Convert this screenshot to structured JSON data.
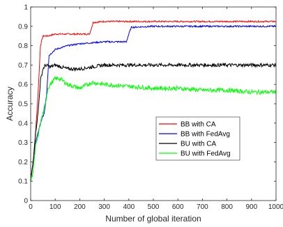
{
  "chart_data": {
    "type": "line",
    "title": "",
    "xlabel": "Number of global iteration",
    "ylabel": "Accuracy",
    "xlim": [
      0,
      1000
    ],
    "ylim": [
      0,
      1
    ],
    "xticks": [
      0,
      100,
      200,
      300,
      400,
      500,
      600,
      700,
      800,
      900,
      1000
    ],
    "yticks": [
      0,
      0.1,
      0.2,
      0.3,
      0.4,
      0.5,
      0.6,
      0.7,
      0.8,
      0.9,
      1
    ],
    "grid": false,
    "legend_position": "center-right",
    "series": [
      {
        "name": "BB with CA",
        "color": "#ff0000",
        "x": [
          0,
          10,
          20,
          30,
          40,
          50,
          70,
          100,
          150,
          200,
          240,
          245,
          255,
          300,
          400,
          500,
          600,
          700,
          800,
          900,
          1000
        ],
        "y": [
          0.1,
          0.2,
          0.35,
          0.55,
          0.8,
          0.85,
          0.85,
          0.86,
          0.86,
          0.86,
          0.86,
          0.88,
          0.92,
          0.925,
          0.925,
          0.925,
          0.925,
          0.925,
          0.925,
          0.925,
          0.925
        ]
      },
      {
        "name": "BB with FedAvg",
        "color": "#0000ff",
        "x": [
          0,
          10,
          20,
          30,
          45,
          55,
          65,
          75,
          100,
          150,
          200,
          300,
          390,
          400,
          410,
          500,
          600,
          700,
          800,
          900,
          1000
        ],
        "y": [
          0.1,
          0.2,
          0.3,
          0.35,
          0.42,
          0.45,
          0.55,
          0.75,
          0.78,
          0.8,
          0.81,
          0.82,
          0.82,
          0.86,
          0.895,
          0.9,
          0.9,
          0.9,
          0.9,
          0.9,
          0.9
        ]
      },
      {
        "name": "BU with CA",
        "color": "#000000",
        "x": [
          0,
          10,
          20,
          30,
          40,
          50,
          60,
          80,
          100,
          150,
          200,
          250,
          300,
          400,
          500,
          600,
          700,
          800,
          900,
          1000
        ],
        "y": [
          0.1,
          0.2,
          0.35,
          0.45,
          0.62,
          0.68,
          0.7,
          0.69,
          0.7,
          0.68,
          0.68,
          0.69,
          0.7,
          0.7,
          0.7,
          0.7,
          0.7,
          0.7,
          0.7,
          0.7
        ]
      },
      {
        "name": "BU with FedAvg",
        "color": "#00ff00",
        "x": [
          0,
          10,
          20,
          30,
          40,
          50,
          60,
          70,
          80,
          100,
          120,
          150,
          200,
          250,
          300,
          400,
          500,
          600,
          700,
          800,
          900,
          1000
        ],
        "y": [
          0.1,
          0.15,
          0.28,
          0.33,
          0.4,
          0.45,
          0.5,
          0.58,
          0.6,
          0.63,
          0.63,
          0.6,
          0.58,
          0.61,
          0.6,
          0.59,
          0.58,
          0.58,
          0.57,
          0.57,
          0.56,
          0.56
        ]
      }
    ]
  }
}
